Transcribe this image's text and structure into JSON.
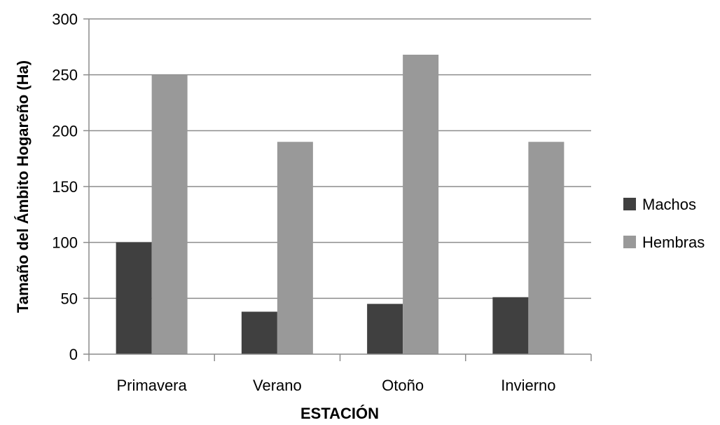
{
  "chart_data": {
    "type": "bar",
    "title": "",
    "xlabel": "ESTACIÓN",
    "ylabel": "Tamaño del Ámbito Hogareño (Ha)",
    "categories": [
      "Primavera",
      "Verano",
      "Otoño",
      "Invierno"
    ],
    "series": [
      {
        "name": "Machos",
        "values": [
          100,
          38,
          45,
          51
        ],
        "color": "#404040"
      },
      {
        "name": "Hembras",
        "values": [
          250,
          190,
          268,
          190
        ],
        "color": "#999999"
      }
    ],
    "ylim": [
      0,
      300
    ],
    "yticks": [
      0,
      50,
      100,
      150,
      200,
      250,
      300
    ],
    "grid": true,
    "legend_position": "right"
  }
}
